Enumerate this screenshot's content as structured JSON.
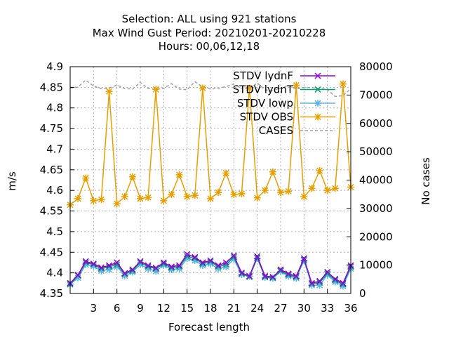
{
  "title_lines": [
    "Selection: ALL using   921 stations",
    "Max Wind Gust   Period: 20210201-20210228",
    "Hours:  00,06,12,18"
  ],
  "chart_data": {
    "type": "line",
    "xlabel": "Forecast length",
    "ylabel": "m/s",
    "y2label": "No cases",
    "xlim": [
      0,
      36
    ],
    "ylim": [
      4.35,
      4.9
    ],
    "y2lim": [
      0,
      80000
    ],
    "xticks": [
      "3",
      "6",
      "9",
      "12",
      "15",
      "18",
      "21",
      "24",
      "27",
      "30",
      "33",
      "36"
    ],
    "yticks": [
      "4.35",
      "4.4",
      "4.45",
      "4.5",
      "4.55",
      "4.6",
      "4.65",
      "4.7",
      "4.75",
      "4.8",
      "4.85",
      "4.9"
    ],
    "y2ticks": [
      "0",
      "10000",
      "20000",
      "30000",
      "40000",
      "50000",
      "60000",
      "70000",
      "80000"
    ],
    "grid": true,
    "legend_position": "top-right",
    "x": [
      0,
      1,
      2,
      3,
      4,
      5,
      6,
      7,
      8,
      9,
      10,
      11,
      12,
      13,
      14,
      15,
      16,
      17,
      18,
      19,
      20,
      21,
      22,
      23,
      24,
      25,
      26,
      27,
      28,
      29,
      30,
      31,
      32,
      33,
      34,
      35,
      36
    ],
    "series": [
      {
        "name": "STDV lydnF",
        "color": "#9400d3",
        "marker": "cross",
        "axis": "y1",
        "values": [
          4.375,
          4.395,
          4.428,
          4.422,
          4.413,
          4.418,
          4.425,
          4.399,
          4.408,
          4.428,
          4.418,
          4.412,
          4.425,
          4.415,
          4.418,
          4.445,
          4.438,
          4.425,
          4.43,
          4.418,
          4.425,
          4.442,
          4.4,
          4.392,
          4.44,
          4.392,
          4.39,
          4.408,
          4.398,
          4.392,
          4.435,
          4.375,
          4.38,
          4.402,
          4.385,
          4.375,
          4.418
        ]
      },
      {
        "name": "STDV lydnT",
        "color": "#009e73",
        "marker": "cross",
        "axis": "y1",
        "values": [
          4.372,
          4.393,
          4.425,
          4.42,
          4.41,
          4.415,
          4.42,
          4.397,
          4.405,
          4.425,
          4.415,
          4.41,
          4.422,
          4.412,
          4.415,
          4.44,
          4.435,
          4.422,
          4.427,
          4.415,
          4.42,
          4.438,
          4.398,
          4.39,
          4.437,
          4.39,
          4.388,
          4.405,
          4.395,
          4.39,
          4.432,
          4.373,
          4.377,
          4.398,
          4.382,
          4.372,
          4.415
        ]
      },
      {
        "name": "STDV lowp",
        "color": "#56b4e9",
        "marker": "star",
        "axis": "y1",
        "values": [
          4.373,
          4.388,
          4.42,
          4.416,
          4.405,
          4.408,
          4.415,
          4.393,
          4.402,
          4.42,
          4.41,
          4.404,
          4.418,
          4.408,
          4.41,
          4.435,
          4.43,
          4.418,
          4.422,
          4.41,
          4.415,
          4.433,
          4.396,
          4.392,
          4.435,
          4.389,
          4.387,
          4.403,
          4.392,
          4.387,
          4.43,
          4.37,
          4.37,
          4.395,
          4.378,
          4.368,
          4.41
        ]
      },
      {
        "name": "STDV OBS",
        "color": "#e69f00",
        "marker": "star",
        "axis": "y1",
        "values": [
          4.565,
          4.58,
          4.63,
          4.575,
          4.578,
          4.84,
          4.568,
          4.585,
          4.633,
          4.58,
          4.583,
          4.845,
          4.575,
          4.59,
          4.638,
          4.585,
          4.588,
          4.848,
          4.58,
          4.595,
          4.642,
          4.59,
          4.592,
          4.848,
          4.582,
          4.6,
          4.645,
          4.595,
          4.598,
          4.855,
          4.585,
          4.605,
          4.648,
          4.6,
          4.605,
          4.858,
          4.608
        ]
      },
      {
        "name": "CASES",
        "color": "#a0a0a0",
        "dash": "dashed",
        "axis": "y2",
        "values": [
          72500,
          72800,
          75300,
          73200,
          72200,
          72500,
          73500,
          72300,
          72100,
          74500,
          72300,
          72000,
          72400,
          74000,
          72100,
          71900,
          74700,
          72900,
          72100,
          72400,
          73000,
          73900,
          72400,
          72100,
          74300,
          71800,
          71600,
          72300,
          73400,
          72100,
          72700,
          72600,
          72400,
          71900,
          69500,
          69800,
          72200
        ]
      }
    ]
  }
}
